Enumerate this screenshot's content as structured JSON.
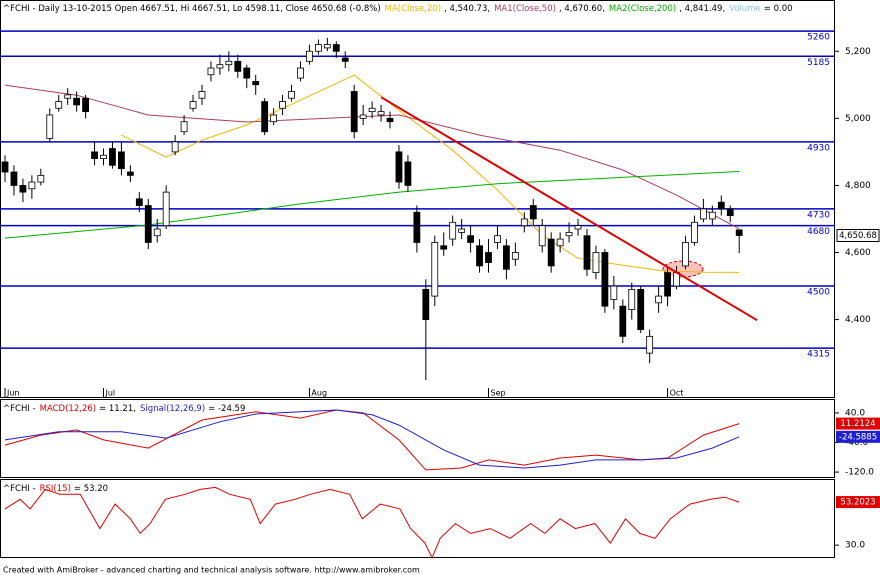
{
  "chart_data": [
    {
      "type": "candlestick",
      "title": "^FCHI - Daily 13-10-2015 Open 4667.51, Hi 4667.51, Lo 4598.11, Close 4650.68 (-0.8%)",
      "xlim": [
        -0.56,
        92.7
      ],
      "xticks": [
        {
          "value": 0,
          "label": "Jun"
        },
        {
          "value": 11,
          "label": "Jul"
        },
        {
          "value": 34,
          "label": "Aug"
        },
        {
          "value": 54,
          "label": "Sep"
        },
        {
          "value": 74,
          "label": "Oct"
        }
      ],
      "ylim": [
        4196,
        5323
      ],
      "yticks": [
        {
          "value": 5200,
          "label": "5,200"
        },
        {
          "value": 5000,
          "label": "5,000"
        },
        {
          "value": 4800,
          "label": "4,800"
        },
        {
          "value": 4600,
          "label": "4,600"
        },
        {
          "value": 4400,
          "label": "4,400"
        }
      ],
      "up_color": "#ffffff",
      "down_color": "#000000",
      "open": [
        4870,
        4840,
        4800,
        4790,
        4810,
        4940,
        5030,
        5060,
        5060,
        5060,
        4900,
        4880,
        4910,
        4900,
        4840,
        4760,
        4740,
        4650,
        4680,
        4900,
        4960,
        5030,
        5060,
        5130,
        5150,
        5160,
        5170,
        5150,
        5110,
        5050,
        4990,
        5030,
        5060,
        5120,
        5170,
        5200,
        5210,
        5220,
        5180,
        5080,
        5000,
        5020,
        5010,
        5000,
        4900,
        4870,
        4720,
        4490,
        4470,
        4620,
        4640,
        4660,
        4650,
        4620,
        4600,
        4630,
        4620,
        4580,
        4680,
        4740,
        4620,
        4640,
        4620,
        4650,
        4670,
        4650,
        4540,
        4600,
        4460,
        4440,
        4430,
        4490,
        4300,
        4450,
        4540,
        4500,
        4560,
        4630,
        4700,
        4700,
        4750,
        4730,
        4667.51
      ],
      "high": [
        4890,
        4860,
        4820,
        4830,
        4850,
        5030,
        5070,
        5090,
        5080,
        5070,
        4930,
        4910,
        4930,
        4930,
        4860,
        4780,
        4760,
        4700,
        4800,
        4950,
        5010,
        5070,
        5100,
        5170,
        5190,
        5200,
        5190,
        5160,
        5130,
        5060,
        5030,
        5070,
        5100,
        5170,
        5220,
        5235,
        5240,
        5230,
        5200,
        5100,
        5040,
        5050,
        5040,
        5020,
        4920,
        4890,
        4740,
        4520,
        4650,
        4660,
        4710,
        4700,
        4680,
        4640,
        4640,
        4680,
        4640,
        4630,
        4720,
        4760,
        4700,
        4660,
        4660,
        4690,
        4700,
        4670,
        4620,
        4610,
        4530,
        4460,
        4510,
        4500,
        4370,
        4500,
        4560,
        4560,
        4650,
        4710,
        4760,
        4740,
        4770,
        4740,
        4667.51
      ],
      "low": [
        4810,
        4770,
        4750,
        4760,
        4800,
        4930,
        5020,
        5040,
        5020,
        5000,
        4860,
        4860,
        4850,
        4830,
        4810,
        4720,
        4610,
        4630,
        4670,
        4890,
        4950,
        5020,
        5040,
        5110,
        5130,
        5140,
        5120,
        5090,
        5070,
        4950,
        4980,
        5010,
        5050,
        5110,
        5160,
        5190,
        5200,
        5180,
        5150,
        4940,
        4980,
        5000,
        4990,
        4970,
        4790,
        4780,
        4600,
        4220,
        4440,
        4590,
        4620,
        4640,
        4600,
        4540,
        4540,
        4610,
        4520,
        4560,
        4660,
        4680,
        4600,
        4540,
        4600,
        4630,
        4650,
        4530,
        4520,
        4420,
        4430,
        4330,
        4400,
        4360,
        4270,
        4420,
        4440,
        4490,
        4550,
        4620,
        4690,
        4680,
        4710,
        4690,
        4598.11
      ],
      "close": [
        4840,
        4800,
        4780,
        4810,
        4830,
        5010,
        5050,
        5070,
        5040,
        5020,
        4880,
        4890,
        4860,
        4850,
        4830,
        4740,
        4630,
        4670,
        4780,
        4930,
        4990,
        5050,
        5080,
        5150,
        5160,
        5170,
        5140,
        5120,
        5100,
        4960,
        5010,
        5050,
        5080,
        5150,
        5200,
        5220,
        5220,
        5200,
        5170,
        4960,
        5010,
        5030,
        5020,
        4990,
        4810,
        4800,
        4630,
        4400,
        4630,
        4610,
        4690,
        4670,
        4630,
        4560,
        4570,
        4650,
        4550,
        4600,
        4700,
        4700,
        4680,
        4560,
        4640,
        4660,
        4680,
        4550,
        4600,
        4440,
        4500,
        4350,
        4490,
        4370,
        4350,
        4470,
        4470,
        4540,
        4630,
        4690,
        4730,
        4720,
        4730,
        4710,
        4650.68
      ],
      "series": [
        {
          "name": "MA(Close,20)",
          "last_label": ", 4,540.73,",
          "color": "#f2b800",
          "x": [
            13,
            18,
            22,
            27,
            33,
            39,
            44,
            50,
            55,
            60,
            64,
            69,
            73,
            78,
            82
          ],
          "values": [
            4950,
            4884,
            4935,
            4980,
            5054,
            5129,
            5024,
            4905,
            4786,
            4652,
            4583,
            4562,
            4547,
            4541,
            4540.73
          ]
        },
        {
          "name": "MA1(Close,50)",
          "last_label": ", 4,670.60,",
          "color": "#a8405e",
          "x": [
            0,
            8,
            16,
            27,
            36,
            44,
            53,
            62,
            69,
            75,
            82
          ],
          "values": [
            5099,
            5069,
            5010,
            4989,
            5000,
            5010,
            4950,
            4905,
            4846,
            4771,
            4670.6
          ]
        },
        {
          "name": "MA2(Close,200)",
          "last_label": ", 4,841.49,",
          "color": "#00b000",
          "x": [
            0,
            16,
            33,
            44,
            55,
            66,
            82
          ],
          "values": [
            4643,
            4682,
            4745,
            4780,
            4805,
            4820,
            4841.49
          ]
        }
      ],
      "volume": {
        "name": "Volume",
        "label": "= 0.00",
        "color": "#8cc8e8"
      },
      "levels_color": "#0000c8",
      "levels": [
        {
          "value": 5260,
          "label": "5260"
        },
        {
          "value": 5185,
          "label": "5185"
        },
        {
          "value": 4930,
          "label": "4930"
        },
        {
          "value": 4730,
          "label": "4730"
        },
        {
          "value": 4680,
          "label": "4680"
        },
        {
          "value": 4500,
          "label": "4500"
        },
        {
          "value": 4315,
          "label": "4315"
        }
      ],
      "trendline": {
        "color": "#e00000",
        "x": [
          42,
          84
        ],
        "values": [
          5063,
          4398
        ]
      },
      "last_price": {
        "value": 4650.68,
        "label": "4,650.68"
      }
    },
    {
      "type": "line",
      "title": "^FCHI -",
      "xlim": [
        -0.56,
        92.7
      ],
      "ylim": [
        -136,
        75
      ],
      "yticks": [
        {
          "value": 40,
          "label": "40.0"
        },
        {
          "value": -40,
          "label": "-40.0"
        },
        {
          "value": -120,
          "label": "-120.0"
        }
      ],
      "series": [
        {
          "name": "MACD(12,26)",
          "last_label": "= 11.21,",
          "badge": "11.2124",
          "color": "#e00000",
          "x": [
            0,
            4,
            8,
            11,
            16,
            22,
            28,
            33,
            37,
            40,
            44,
            47,
            51,
            54,
            58,
            62,
            66,
            71,
            74,
            78,
            82
          ],
          "values": [
            -47,
            -20,
            -6,
            -33,
            -55,
            21,
            43,
            26,
            48,
            40,
            -33,
            -114,
            -109,
            -87,
            -101,
            -82,
            -74,
            -87,
            -82,
            -20,
            11.21
          ]
        },
        {
          "name": "Signal(12,26,9)",
          "last_label": "= -24.59",
          "badge": "-24.5885",
          "color": "#1f1fd0",
          "x": [
            0,
            6,
            13,
            18,
            24,
            28,
            37,
            41,
            44,
            49,
            53,
            58,
            62,
            66,
            71,
            75,
            79,
            82
          ],
          "values": [
            -33,
            -11,
            -11,
            -28,
            16,
            37,
            48,
            35,
            7,
            -60,
            -101,
            -109,
            -101,
            -87,
            -87,
            -82,
            -55,
            -24.59
          ]
        }
      ]
    },
    {
      "type": "line",
      "title": "^FCHI -",
      "xlim": [
        -0.56,
        92.7
      ],
      "ylim": [
        22,
        64
      ],
      "yticks": [
        {
          "value": 30,
          "label": "30.0"
        }
      ],
      "series": [
        {
          "name": "RSI(15)",
          "last_label": "= 53.20",
          "badge": "53.2023",
          "color": "#e00000",
          "x": [
            0,
            1.7,
            2.8,
            4.5,
            6.1,
            8.4,
            10.6,
            12.3,
            14,
            15.1,
            16.2,
            17.9,
            20.1,
            21.8,
            23.5,
            25.1,
            27.4,
            28.5,
            30.2,
            32.4,
            34.1,
            36.3,
            38.5,
            39.9,
            41.9,
            44.1,
            45.3,
            46.9,
            47.7,
            48.6,
            50.3,
            52,
            54.2,
            56.4,
            58.7,
            60.3,
            62,
            63.7,
            65.9,
            67.6,
            69.3,
            70.9,
            72.6,
            74.3,
            76.5,
            78.8,
            80.4,
            82
          ],
          "values": [
            49.5,
            54.7,
            49.5,
            60,
            57.4,
            57.4,
            38.9,
            52.1,
            44.2,
            36.3,
            41.6,
            54.7,
            57.4,
            60,
            61.1,
            57.4,
            54.7,
            41.6,
            52.1,
            54.7,
            57.4,
            60,
            57.4,
            44.2,
            52.1,
            49.5,
            38.9,
            31.1,
            23.2,
            33.7,
            41.6,
            36.3,
            38.9,
            33.7,
            41.6,
            36.3,
            44.2,
            38.9,
            41.6,
            31.1,
            44.2,
            36.3,
            33.7,
            44.2,
            52.1,
            54.7,
            55.8,
            53.2
          ]
        }
      ]
    }
  ],
  "footer": "Created with AmiBroker - advanced charting and technical analysis software. http://www.amibroker.com"
}
